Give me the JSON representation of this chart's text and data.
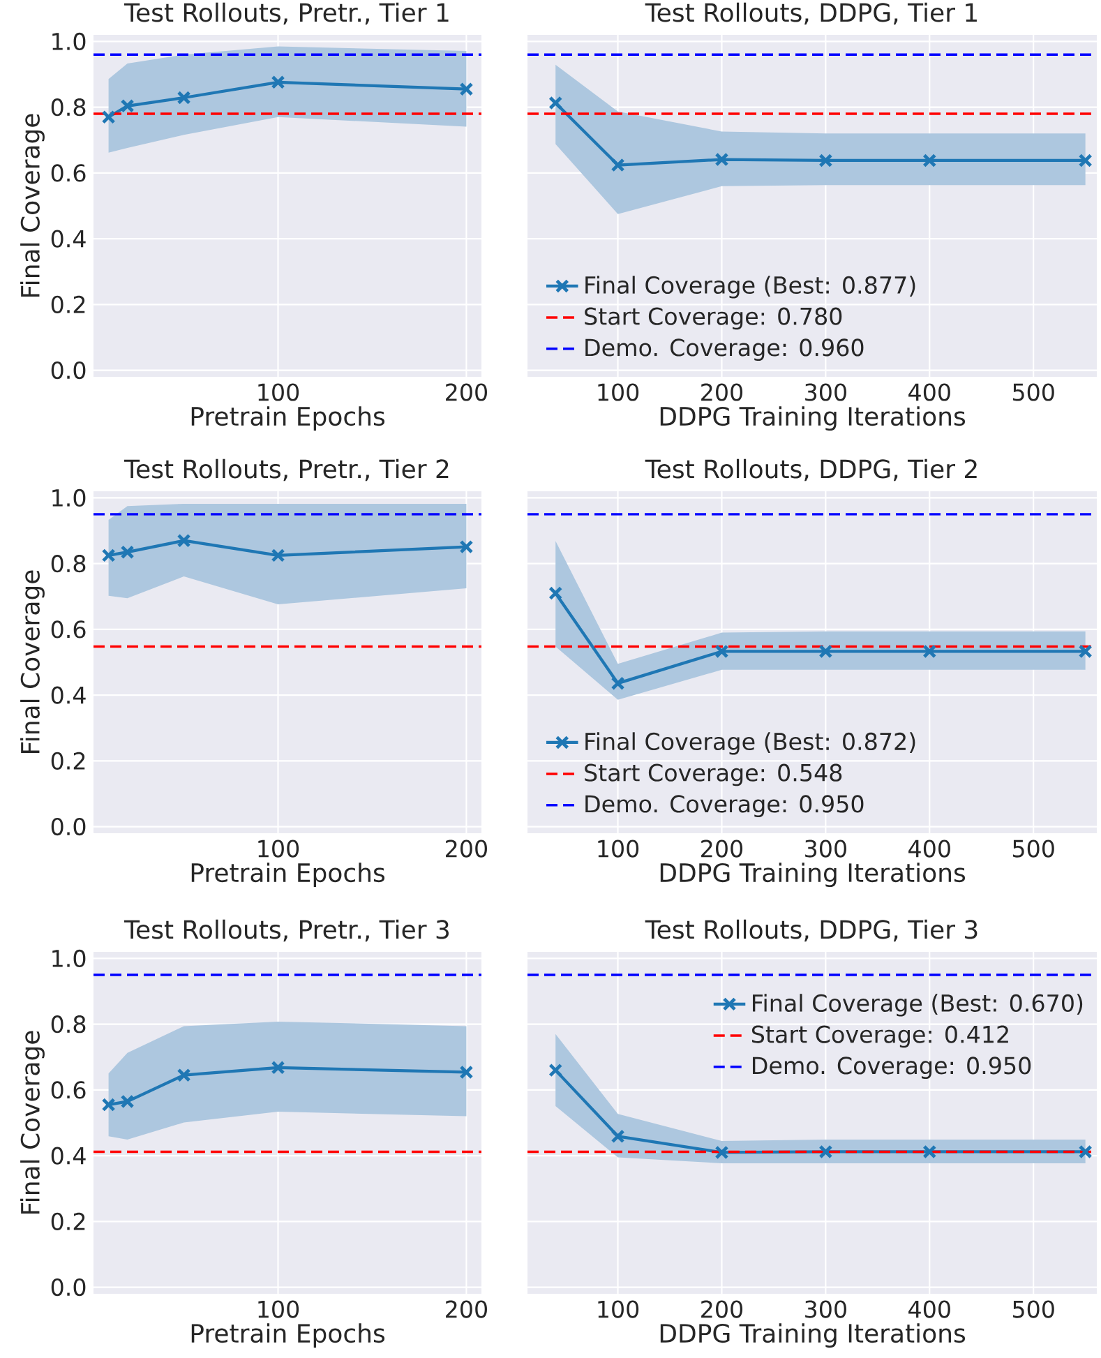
{
  "chart_data": [
    {
      "type": "line",
      "title": "Test Rollouts, Pretr., Tier 1",
      "xlabel": "Pretrain Epochs",
      "ylabel": "Final Coverage",
      "x": [
        10,
        20,
        50,
        100,
        200
      ],
      "series": [
        {
          "color": "#1f77b4",
          "values": [
            0.77,
            0.804,
            0.829,
            0.876,
            0.855
          ],
          "lower": [
            0.662,
            0.676,
            0.716,
            0.77,
            0.741
          ],
          "upper": [
            0.886,
            0.933,
            0.96,
            0.985,
            0.971
          ]
        }
      ],
      "xlim": [
        2,
        208
      ],
      "ylim": [
        -0.02,
        1.02
      ],
      "xticks": [
        100,
        200
      ],
      "yticks": [
        {
          "value": 0,
          "label": "0.0"
        },
        {
          "value": 0.2,
          "label": "0.2"
        },
        {
          "value": 0.4,
          "label": "0.4"
        },
        {
          "value": 0.6,
          "label": "0.6"
        },
        {
          "value": 0.8,
          "label": "0.8"
        },
        {
          "value": 1.0,
          "label": "1.0"
        }
      ],
      "grid": true,
      "marker": "cross",
      "line_style": "solid",
      "ref_lines": [
        {
          "axis": "y",
          "value": 0.78,
          "color": "#ff0000",
          "line_style": "dashed"
        },
        {
          "axis": "y",
          "value": 0.96,
          "color": "#0000ff",
          "line_style": "dashed"
        }
      ]
    },
    {
      "type": "line",
      "title": "Test Rollouts, DDPG, Tier 1",
      "xlabel": "DDPG Training Iterations",
      "x": [
        40,
        100,
        200,
        300,
        400,
        550
      ],
      "series": [
        {
          "name": "Final Coverage (Best: 0.877)",
          "color": "#1f77b4",
          "values": [
            0.813,
            0.624,
            0.641,
            0.638,
            0.638,
            0.638
          ],
          "lower": [
            0.688,
            0.475,
            0.56,
            0.563,
            0.563,
            0.563
          ],
          "upper": [
            0.929,
            0.787,
            0.726,
            0.72,
            0.72,
            0.72
          ]
        }
      ],
      "xlim": [
        13,
        561
      ],
      "ylim": [
        -0.02,
        1.02
      ],
      "xticks": [
        100,
        200,
        300,
        400,
        500
      ],
      "yticks": [
        0,
        0.2,
        0.4,
        0.6,
        0.8,
        1.0
      ],
      "tick_labels": "x",
      "grid": true,
      "marker": "cross",
      "line_style": "solid",
      "legend": "bottom left",
      "ref_lines": [
        {
          "axis": "y",
          "value": 0.78,
          "label": "Start Coverage: 0.780",
          "color": "#ff0000",
          "line_style": "dashed"
        },
        {
          "axis": "y",
          "value": 0.96,
          "label": "Demo. Coverage: 0.960",
          "color": "#0000ff",
          "line_style": "dashed"
        }
      ]
    },
    {
      "type": "line",
      "title": "Test Rollouts, Pretr., Tier 2",
      "xlabel": "Pretrain Epochs",
      "ylabel": "Final Coverage",
      "x": [
        10,
        20,
        50,
        100,
        200
      ],
      "series": [
        {
          "color": "#1f77b4",
          "values": [
            0.825,
            0.835,
            0.87,
            0.825,
            0.851
          ],
          "lower": [
            0.702,
            0.695,
            0.761,
            0.676,
            0.725
          ],
          "upper": [
            0.933,
            0.975,
            0.982,
            0.982,
            0.982
          ]
        }
      ],
      "xlim": [
        2,
        208
      ],
      "ylim": [
        -0.02,
        1.02
      ],
      "xticks": [
        100,
        200
      ],
      "yticks": [
        {
          "value": 0,
          "label": "0.0"
        },
        {
          "value": 0.2,
          "label": "0.2"
        },
        {
          "value": 0.4,
          "label": "0.4"
        },
        {
          "value": 0.6,
          "label": "0.6"
        },
        {
          "value": 0.8,
          "label": "0.8"
        },
        {
          "value": 1.0,
          "label": "1.0"
        }
      ],
      "grid": true,
      "marker": "cross",
      "line_style": "solid",
      "ref_lines": [
        {
          "axis": "y",
          "value": 0.548,
          "color": "#ff0000",
          "line_style": "dashed"
        },
        {
          "axis": "y",
          "value": 0.95,
          "color": "#0000ff",
          "line_style": "dashed"
        }
      ]
    },
    {
      "type": "line",
      "title": "Test Rollouts, DDPG, Tier 2",
      "xlabel": "DDPG Training Iterations",
      "x": [
        40,
        100,
        200,
        300,
        400,
        550
      ],
      "series": [
        {
          "name": "Final Coverage (Best: 0.872)",
          "color": "#1f77b4",
          "values": [
            0.71,
            0.436,
            0.533,
            0.533,
            0.533,
            0.533
          ],
          "lower": [
            0.548,
            0.386,
            0.477,
            0.477,
            0.477,
            0.477
          ],
          "upper": [
            0.869,
            0.495,
            0.59,
            0.594,
            0.594,
            0.594
          ]
        }
      ],
      "xlim": [
        13,
        561
      ],
      "ylim": [
        -0.02,
        1.02
      ],
      "xticks": [
        100,
        200,
        300,
        400,
        500
      ],
      "yticks": [
        0,
        0.2,
        0.4,
        0.6,
        0.8,
        1.0
      ],
      "tick_labels": "x",
      "grid": true,
      "marker": "cross",
      "line_style": "solid",
      "legend": "bottom left",
      "ref_lines": [
        {
          "axis": "y",
          "value": 0.548,
          "label": "Start Coverage: 0.548",
          "color": "#ff0000",
          "line_style": "dashed"
        },
        {
          "axis": "y",
          "value": 0.95,
          "label": "Demo. Coverage: 0.950",
          "color": "#0000ff",
          "line_style": "dashed"
        }
      ]
    },
    {
      "type": "line",
      "title": "Test Rollouts, Pretr., Tier 3",
      "xlabel": "Pretrain Epochs",
      "ylabel": "Final Coverage",
      "x": [
        10,
        20,
        50,
        100,
        200
      ],
      "series": [
        {
          "color": "#1f77b4",
          "values": [
            0.555,
            0.565,
            0.645,
            0.668,
            0.654
          ],
          "lower": [
            0.459,
            0.449,
            0.501,
            0.534,
            0.52
          ],
          "upper": [
            0.65,
            0.713,
            0.794,
            0.808,
            0.794
          ]
        }
      ],
      "xlim": [
        2,
        208
      ],
      "ylim": [
        -0.02,
        1.02
      ],
      "xticks": [
        100,
        200
      ],
      "yticks": [
        {
          "value": 0,
          "label": "0.0"
        },
        {
          "value": 0.2,
          "label": "0.2"
        },
        {
          "value": 0.4,
          "label": "0.4"
        },
        {
          "value": 0.6,
          "label": "0.6"
        },
        {
          "value": 0.8,
          "label": "0.8"
        },
        {
          "value": 1.0,
          "label": "1.0"
        }
      ],
      "grid": true,
      "marker": "cross",
      "line_style": "solid",
      "ref_lines": [
        {
          "axis": "y",
          "value": 0.412,
          "color": "#ff0000",
          "line_style": "dashed"
        },
        {
          "axis": "y",
          "value": 0.95,
          "color": "#0000ff",
          "line_style": "dashed"
        }
      ]
    },
    {
      "type": "line",
      "title": "Test Rollouts, DDPG, Tier 3",
      "xlabel": "DDPG Training Iterations",
      "x": [
        40,
        100,
        200,
        300,
        400,
        550
      ],
      "series": [
        {
          "name": "Final Coverage (Best: 0.670)",
          "color": "#1f77b4",
          "values": [
            0.66,
            0.459,
            0.41,
            0.412,
            0.412,
            0.412
          ],
          "lower": [
            0.551,
            0.395,
            0.377,
            0.377,
            0.377,
            0.377
          ],
          "upper": [
            0.77,
            0.527,
            0.445,
            0.449,
            0.449,
            0.449
          ]
        }
      ],
      "xlim": [
        13,
        561
      ],
      "ylim": [
        -0.02,
        1.02
      ],
      "xticks": [
        100,
        200,
        300,
        400,
        500
      ],
      "yticks": [
        0,
        0.2,
        0.4,
        0.6,
        0.8,
        1.0
      ],
      "tick_labels": "x",
      "grid": true,
      "marker": "cross",
      "line_style": "solid",
      "legend": "top right",
      "ref_lines": [
        {
          "axis": "y",
          "value": 0.412,
          "label": "Start Coverage: 0.412",
          "color": "#ff0000",
          "line_style": "dashed"
        },
        {
          "axis": "y",
          "value": 0.95,
          "label": "Demo. Coverage: 0.950",
          "color": "#0000ff",
          "line_style": "dashed"
        }
      ]
    }
  ]
}
